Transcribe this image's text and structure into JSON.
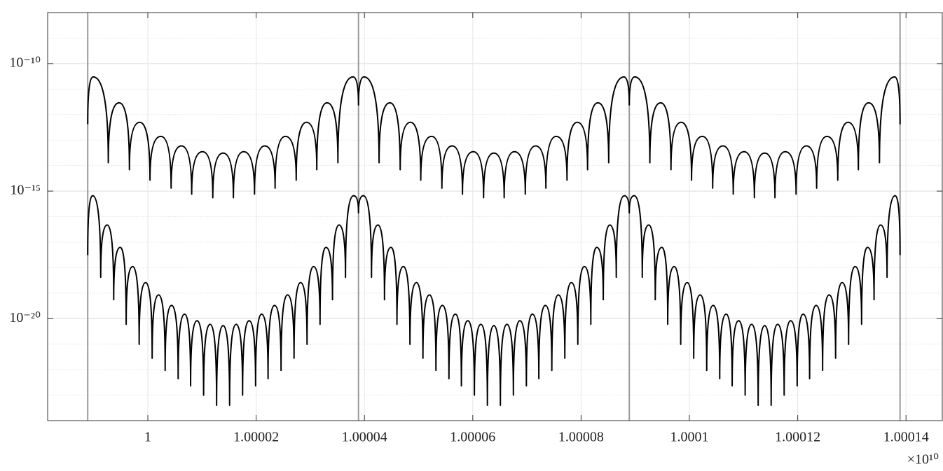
{
  "chart_data": {
    "type": "line",
    "yscale": "log",
    "grid": true,
    "xlim": [
      0.9999815,
      1.0001467
    ],
    "ylim": [
      1e-24,
      1e-08
    ],
    "xticks": [
      1,
      1.00002,
      1.00004,
      1.00006,
      1.00008,
      1.0001,
      1.00012,
      1.00014
    ],
    "yticks": [
      {
        "value": 1e-10,
        "label": "10⁻¹⁰"
      },
      {
        "value": 1e-15,
        "label": "10⁻¹⁵"
      },
      {
        "value": 1e-20,
        "label": "10⁻²⁰"
      }
    ],
    "yminor": [
      1e-23,
      1e-22,
      1e-21,
      1e-19,
      1e-18,
      1e-17,
      1e-16,
      1e-14,
      1e-13,
      1e-12,
      1e-11,
      1e-09
    ],
    "x_multiplier_label": "×10¹⁰",
    "vlines": [
      0.9999889,
      1.0000389,
      1.0000889,
      1.0001389
    ],
    "vline_color": "#9a9a9a",
    "series": [
      {
        "color": "#000000",
        "x": [
          0.9999889,
          0.9999899,
          0.9999927,
          0.9999947,
          0.9999966,
          0.9999985,
          1.0000004,
          1.0000024,
          1.0000043,
          1.0000062,
          1.0000081,
          1.0000101,
          1.000012,
          1.0000139,
          1.0000158,
          1.0000177,
          1.0000197,
          1.0000216,
          1.0000235,
          1.0000254,
          1.0000274,
          1.0000293,
          1.0000312,
          1.0000331,
          1.0000351,
          1.0000379,
          1.0000389,
          1.0000399,
          1.0000427,
          1.0000447,
          1.0000466,
          1.0000485,
          1.0000504,
          1.0000524,
          1.0000543,
          1.0000562,
          1.0000581,
          1.0000601,
          1.000062,
          1.0000639,
          1.0000658,
          1.0000677,
          1.0000697,
          1.0000716,
          1.0000735,
          1.0000754,
          1.0000774,
          1.0000793,
          1.0000812,
          1.0000831,
          1.0000851,
          1.0000879,
          1.0000889,
          1.0000899,
          1.0000927,
          1.0000947,
          1.0000966,
          1.0000985,
          1.0001004,
          1.0001024,
          1.0001043,
          1.0001062,
          1.0001081,
          1.0001101,
          1.000112,
          1.0001139,
          1.0001158,
          1.0001177,
          1.0001197,
          1.0001216,
          1.0001235,
          1.0001254,
          1.0001274,
          1.0001293,
          1.0001312,
          1.0001331,
          1.0001351,
          1.0001379,
          1.0001389
        ],
        "values": [
          4.2e-13,
          3e-11,
          1.3e-14,
          2.9e-12,
          6.9e-15,
          5e-13,
          2.7e-15,
          1.4e-13,
          1.3e-15,
          5.9e-14,
          7.6e-16,
          3.5e-14,
          5.5e-16,
          3.1e-14,
          5.5e-16,
          3.5e-14,
          7.6e-16,
          5.9e-14,
          1.3e-15,
          1.4e-13,
          2.7e-15,
          5e-13,
          6.9e-15,
          2.9e-12,
          1.3e-14,
          3e-11,
          2.4e-12,
          3e-11,
          1.3e-14,
          2.9e-12,
          6.9e-15,
          5e-13,
          2.7e-15,
          1.4e-13,
          1.3e-15,
          5.9e-14,
          7.6e-16,
          3.5e-14,
          5.5e-16,
          3.1e-14,
          5.5e-16,
          3.5e-14,
          7.6e-16,
          5.9e-14,
          1.3e-15,
          1.4e-13,
          2.7e-15,
          5e-13,
          6.9e-15,
          2.9e-12,
          1.3e-14,
          3e-11,
          2.4e-12,
          3e-11,
          1.3e-14,
          2.9e-12,
          6.9e-15,
          5e-13,
          2.7e-15,
          1.4e-13,
          1.3e-15,
          5.9e-14,
          7.6e-16,
          3.5e-14,
          5.5e-16,
          3.1e-14,
          5.5e-16,
          3.5e-14,
          7.6e-16,
          5.9e-14,
          1.3e-15,
          1.4e-13,
          2.7e-15,
          5e-13,
          6.9e-15,
          2.9e-12,
          1.3e-14,
          3e-11,
          4.2e-13
        ]
      },
      {
        "color": "#000000",
        "x": [
          0.9999889,
          0.9999898,
          0.9999913,
          0.9999925,
          0.9999937,
          0.9999949,
          0.999996,
          0.9999972,
          0.9999984,
          0.9999996,
          1.0000008,
          1.000002,
          1.0000032,
          1.0000044,
          1.0000056,
          1.0000068,
          1.0000079,
          1.0000091,
          1.0000103,
          1.0000115,
          1.0000127,
          1.0000139,
          1.0000151,
          1.0000163,
          1.0000175,
          1.0000187,
          1.0000199,
          1.000021,
          1.0000222,
          1.0000234,
          1.0000246,
          1.0000258,
          1.000027,
          1.0000282,
          1.0000294,
          1.0000306,
          1.0000318,
          1.0000329,
          1.0000341,
          1.0000353,
          1.0000365,
          1.000038,
          1.0000389,
          1.0000398,
          1.0000413,
          1.0000425,
          1.0000437,
          1.0000449,
          1.000046,
          1.0000472,
          1.0000484,
          1.0000496,
          1.0000508,
          1.000052,
          1.0000532,
          1.0000544,
          1.0000556,
          1.0000568,
          1.0000579,
          1.0000591,
          1.0000603,
          1.0000615,
          1.0000627,
          1.0000639,
          1.0000651,
          1.0000663,
          1.0000675,
          1.0000687,
          1.0000699,
          1.000071,
          1.0000722,
          1.0000734,
          1.0000746,
          1.0000758,
          1.000077,
          1.0000782,
          1.0000794,
          1.0000806,
          1.0000818,
          1.0000829,
          1.0000841,
          1.0000853,
          1.0000865,
          1.000088,
          1.0000889,
          1.0000898,
          1.0000913,
          1.0000925,
          1.0000937,
          1.0000949,
          1.000096,
          1.0000972,
          1.0000984,
          1.0000996,
          1.0001008,
          1.000102,
          1.0001032,
          1.0001044,
          1.0001056,
          1.0001068,
          1.0001079,
          1.0001091,
          1.0001103,
          1.0001115,
          1.0001127,
          1.0001139,
          1.0001151,
          1.0001163,
          1.0001175,
          1.0001187,
          1.0001199,
          1.000121,
          1.0001222,
          1.0001234,
          1.0001246,
          1.0001258,
          1.000127,
          1.0001282,
          1.0001294,
          1.0001306,
          1.0001318,
          1.0001329,
          1.0001341,
          1.0001353,
          1.0001365,
          1.000138,
          1.0001389
        ],
        "values": [
          3.1e-18,
          6.6e-16,
          4.2e-19,
          4.7e-17,
          5.5e-20,
          6.2e-18,
          6e-21,
          1.1e-18,
          9.8e-22,
          2.6e-19,
          2.8e-22,
          8.5e-20,
          9.3e-23,
          3.3e-20,
          4.4e-23,
          1.5e-20,
          2.3e-23,
          8.3e-21,
          1e-23,
          6e-21,
          4e-24,
          5.3e-21,
          4e-24,
          6e-21,
          1e-23,
          8.3e-21,
          2.3e-23,
          1.5e-20,
          4.4e-23,
          3.3e-20,
          9.3e-23,
          8.5e-20,
          2.8e-22,
          2.6e-19,
          9.8e-22,
          1.1e-18,
          6e-21,
          6.2e-18,
          5.5e-20,
          4.7e-17,
          4.2e-19,
          6.6e-16,
          1.4e-16,
          6.6e-16,
          4.2e-19,
          4.7e-17,
          5.5e-20,
          6.2e-18,
          6e-21,
          1.1e-18,
          9.8e-22,
          2.6e-19,
          2.8e-22,
          8.5e-20,
          9.3e-23,
          3.3e-20,
          4.4e-23,
          1.5e-20,
          2.3e-23,
          8.3e-21,
          1e-23,
          6e-21,
          4e-24,
          5.3e-21,
          4e-24,
          6e-21,
          1e-23,
          8.3e-21,
          2.3e-23,
          1.5e-20,
          4.4e-23,
          3.3e-20,
          9.3e-23,
          8.5e-20,
          2.8e-22,
          2.6e-19,
          9.8e-22,
          1.1e-18,
          6e-21,
          6.2e-18,
          5.5e-20,
          4.7e-17,
          4.2e-19,
          6.6e-16,
          1.4e-16,
          6.6e-16,
          4.2e-19,
          4.7e-17,
          5.5e-20,
          6.2e-18,
          6e-21,
          1.1e-18,
          9.8e-22,
          2.6e-19,
          2.8e-22,
          8.5e-20,
          9.3e-23,
          3.3e-20,
          4.4e-23,
          1.5e-20,
          2.3e-23,
          8.3e-21,
          1e-23,
          6e-21,
          4e-24,
          5.3e-21,
          4e-24,
          6e-21,
          1e-23,
          8.3e-21,
          2.3e-23,
          1.5e-20,
          4.4e-23,
          3.3e-20,
          9.3e-23,
          8.5e-20,
          2.8e-22,
          2.6e-19,
          9.8e-22,
          1.1e-18,
          6e-21,
          6.2e-18,
          5.5e-20,
          4.7e-17,
          4.2e-19,
          6.6e-16,
          3.1e-18
        ]
      }
    ]
  }
}
